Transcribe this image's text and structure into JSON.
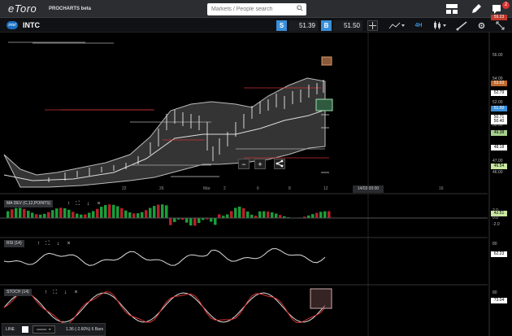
{
  "app": {
    "logo": "eToro",
    "logo_sub": "PROCHARTS beta",
    "search_placeholder": "Markets / People search",
    "notifications": "2"
  },
  "toolbar": {
    "instrument": "INTC",
    "instrument_logo": "intel",
    "sell_label": "S",
    "sell_price": "51.39",
    "buy_label": "B",
    "buy_price": "51.50",
    "interval": "4H"
  },
  "price_axis": {
    "labels": [
      {
        "text": "56.00",
        "v": 56.0
      },
      {
        "text": "54.00",
        "v": 54.0
      },
      {
        "text": "52.00",
        "v": 52.0
      },
      {
        "text": "50.00",
        "v": 50.0
      },
      {
        "text": "48.00",
        "v": 48.0
      },
      {
        "text": "47.00",
        "v": 47.0
      },
      {
        "text": "46.00",
        "v": 46.0
      }
    ],
    "tags": [
      {
        "text": "59.23",
        "v": 59.23,
        "color": "#c0392b",
        "fg": "#fff"
      },
      {
        "text": "53.63",
        "v": 53.63,
        "color": "#c0692b",
        "fg": "#fff"
      },
      {
        "text": "52.79",
        "v": 52.79,
        "color": "#ffffff",
        "fg": "#000"
      },
      {
        "text": "51.50",
        "v": 51.5,
        "color": "#3a8fd8",
        "fg": "#fff"
      },
      {
        "text": "50.71",
        "v": 50.71,
        "color": "#ffffff",
        "fg": "#000"
      },
      {
        "text": "50.40",
        "v": 50.4,
        "color": "#ffffff",
        "fg": "#000"
      },
      {
        "text": "49.38",
        "v": 49.38,
        "color": "#a7d08c",
        "fg": "#000"
      },
      {
        "text": "48.18",
        "v": 48.18,
        "color": "#ffffff",
        "fg": "#000"
      },
      {
        "text": "46.54",
        "v": 46.54,
        "color": "#c9e7a0",
        "fg": "#000"
      },
      {
        "text": "42.51",
        "v": 42.51,
        "color": "#c9e7a0",
        "fg": "#000"
      }
    ]
  },
  "time_axis": {
    "labels": [
      "22",
      "26",
      "Mar",
      "2",
      "6",
      "8",
      "12",
      "16"
    ],
    "crosshair_label": "14/03 00:00"
  },
  "indicators": {
    "madev": {
      "title": "MA DEV (C,12,POINTS)",
      "axis": [
        "2.0",
        "0.0",
        "-2.0"
      ]
    },
    "rsi": {
      "title": "RSI (14)",
      "axis": [
        "80",
        "62.23"
      ]
    },
    "stoch": {
      "title": "STOCH (14)",
      "axis": [
        "73.04",
        "80"
      ]
    }
  },
  "line_tool": {
    "label": "LINE",
    "info": "1.36 (-2.60%) 6 Bars"
  },
  "colors": {
    "up": "#1a9e3a",
    "down": "#b8202a",
    "band": "#bbbbbb"
  }
}
